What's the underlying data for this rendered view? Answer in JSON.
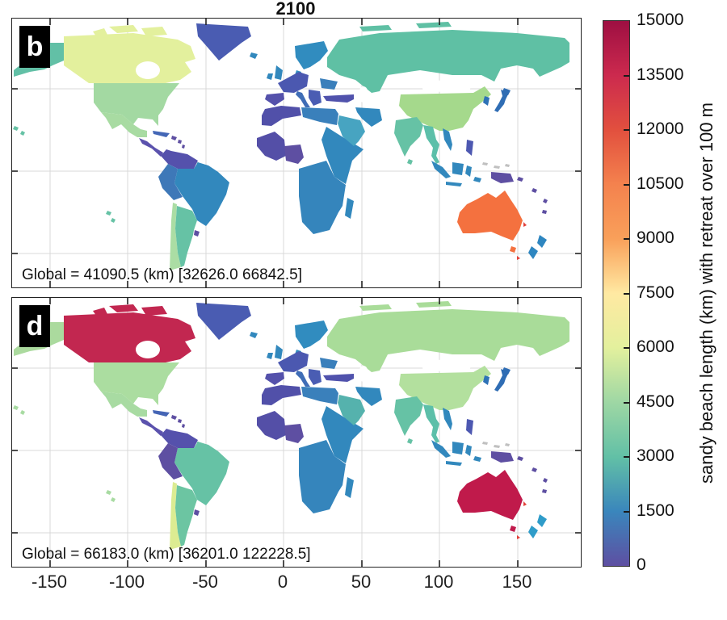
{
  "title": "2100",
  "panels": [
    {
      "id": "b",
      "label": "b",
      "global_text": "Global = 41090.5 (km) [32626.0 66842.5]",
      "region_colors": {
        "alaska": "#62c0a6",
        "canada": "#e3f09d",
        "greenland": "#4a5cb2",
        "usa": "#a3d9a2",
        "mexico": "#a8dba2",
        "central_america": "#5b52ad",
        "cuba": "#4467b6",
        "caribbean": "#5e4fa2",
        "colombia_venezuela": "#5551ac",
        "guyana": "#62c0a6",
        "peru": "#3e78b8",
        "brazil": "#3288bd",
        "chile": "#abdda4",
        "argentina": "#66c2a5",
        "uruguay": "#5e4fa2",
        "iceland": "#3288bd",
        "uk_ireland": "#3288bd",
        "scandinavia": "#318cbf",
        "west_europe": "#4b58b0",
        "iberia": "#5451ab",
        "italy": "#3f6db6",
        "balkans": "#4a5db3",
        "east_europe": "#3a7fbb",
        "turkey": "#5052ac",
        "north_africa_west": "#5150a9",
        "libya_egypt": "#3a80bb",
        "west_africa": "#544fa7",
        "nigeria_gulf": "#5e4fa2",
        "east_africa": "#3288bd",
        "southern_africa": "#3585bc",
        "madagascar": "#3288bd",
        "saudi_arabia": "#47a4c1",
        "iran": "#3288bd",
        "russia": "#5fc0a4",
        "russia_slivers": "#5fc0a4",
        "china": "#a5d98c",
        "korea": "#2e72b6",
        "japan": "#2f6db4",
        "india": "#66c2a5",
        "se_asia": "#5cbfa9",
        "vietnam": "#3288bd",
        "indonesia": "#3288bd",
        "philippines": "#4d58b1",
        "new_guinea": "#5e4fa2",
        "pacific_islands": "#5e4fa2",
        "australia": "#f4713f",
        "new_zealand": "#2e86c0",
        "red_specks": "#e2403a",
        "no_data": "#c0c0c0",
        "scattered_green": "#66c2a5",
        "hudson_bay": "#ffffff",
        "mongolia_interior": "#ffffff",
        "caspian_sea": "#ffffff"
      }
    },
    {
      "id": "d",
      "label": "d",
      "global_text": "Global = 66183.0 (km) [36201.0 122228.5]",
      "region_colors": {
        "alaska": "#abda9e",
        "canada": "#c22750",
        "greenland": "#4a5cb2",
        "usa": "#abdda0",
        "mexico": "#a8dba2",
        "central_america": "#5b52ad",
        "cuba": "#4565b5",
        "caribbean": "#5e4fa2",
        "colombia_venezuela": "#5551ac",
        "guyana": "#62c0a6",
        "peru": "#5e4fa2",
        "brazil": "#66c2a5",
        "chile": "#dcec92",
        "argentina": "#6cc5a2",
        "uruguay": "#5e4fa2",
        "iceland": "#3288bd",
        "uk_ireland": "#3288bd",
        "scandinavia": "#318cbf",
        "west_europe": "#4b58b0",
        "iberia": "#5451ab",
        "italy": "#3f6db6",
        "balkans": "#4a5db3",
        "east_europe": "#3a7fbb",
        "turkey": "#5052ac",
        "north_africa_west": "#5150a9",
        "libya_egypt": "#3a80bb",
        "west_africa": "#544fa7",
        "nigeria_gulf": "#5e4fa2",
        "east_africa": "#3288bd",
        "southern_africa": "#3585bc",
        "madagascar": "#3288bd",
        "saudi_arabia": "#55b2ad",
        "iran": "#3288bd",
        "russia": "#a9dc99",
        "russia_slivers": "#a9dc99",
        "china": "#b3e09e",
        "korea": "#2e72b6",
        "japan": "#2f6db4",
        "india": "#66c2a5",
        "se_asia": "#5cbfa9",
        "vietnam": "#3288bd",
        "indonesia": "#3288bd",
        "philippines": "#4d58b1",
        "new_guinea": "#5e4fa2",
        "pacific_islands": "#5e4fa2",
        "australia": "#c01a4b",
        "new_zealand": "#2f9cc9",
        "red_specks": "#e2403a",
        "no_data": "#c0c0c0",
        "scattered_green": "#a8dba2",
        "hudson_bay": "#ffffff",
        "mongolia_interior": "#ffffff",
        "caspian_sea": "#ffffff"
      }
    }
  ],
  "x_axis_ticks": [
    "-150",
    "-100",
    "-50",
    "0",
    "50",
    "100",
    "150"
  ],
  "colorbar": {
    "ticks": [
      "0",
      "1500",
      "3000",
      "4500",
      "6000",
      "7500",
      "9000",
      "10500",
      "12000",
      "13500",
      "15000"
    ],
    "label": "sandy beach length (km) with retreat over 100 m",
    "stops": [
      "#5e4fa2",
      "#3a86bc",
      "#62c0a6",
      "#9ed7a4",
      "#e3f09d",
      "#ffe9a2",
      "#f9a05a",
      "#f4824e",
      "#e2503e",
      "#cc2a4e",
      "#9e0f42"
    ]
  },
  "chart_data": {
    "type": "heatmap",
    "variant": "world_choropleth_two_panels",
    "title": "2100",
    "value_label": "sandy beach length (km) with retreat over 100 m",
    "value_range": [
      0,
      15000
    ],
    "colorbar_ticks": [
      0,
      1500,
      3000,
      4500,
      6000,
      7500,
      9000,
      10500,
      12000,
      13500,
      15000
    ],
    "colormap_low_to_high": [
      "#5e4fa2",
      "#3a86bc",
      "#62c0a6",
      "#9ed7a4",
      "#e3f09d",
      "#ffe9a2",
      "#f9a05a",
      "#f4824e",
      "#e2503e",
      "#cc2a4e",
      "#9e0f42"
    ],
    "lon_axis_ticks": [
      -150,
      -100,
      -50,
      0,
      50,
      100,
      150
    ],
    "legend_position": "right-colorbar",
    "grid": true,
    "panels": [
      {
        "panel": "b",
        "global_km": 41090.5,
        "range_km": [
          32626.0,
          66842.5
        ],
        "country_values_km_estimated": {
          "alaska": 3000,
          "canada": 6000,
          "usa": 4700,
          "mexico": 4600,
          "greenland": 700,
          "central_america": 400,
          "caribbean": 200,
          "cuba": 1100,
          "colombia_venezuela": 400,
          "guyana": 3000,
          "peru": 1300,
          "brazil": 1500,
          "chile": 4500,
          "argentina": 3000,
          "uruguay": 200,
          "iceland": 1500,
          "uk_ireland": 1500,
          "scandinavia": 1600,
          "west_europe": 600,
          "iberia": 400,
          "italy": 1200,
          "balkans": 700,
          "east_europe": 1400,
          "turkey": 400,
          "north_africa_west": 300,
          "libya_egypt": 1400,
          "west_africa": 300,
          "nigeria_gulf": 150,
          "east_africa": 1500,
          "southern_africa": 1500,
          "madagascar": 1500,
          "saudi_arabia": 2300,
          "iran": 1500,
          "russia": 3100,
          "china": 5200,
          "korea": 1200,
          "japan": 1100,
          "india": 3000,
          "se_asia": 2800,
          "vietnam": 1500,
          "indonesia": 1500,
          "philippines": 600,
          "new_guinea": 200,
          "pacific_islands": 200,
          "australia": 11500,
          "new_zealand": 1600
        }
      },
      {
        "panel": "d",
        "global_km": 66183.0,
        "range_km": [
          36201.0,
          122228.5
        ],
        "country_values_km_estimated": {
          "alaska": 4700,
          "canada": 14200,
          "usa": 4800,
          "mexico": 4600,
          "greenland": 700,
          "central_america": 400,
          "caribbean": 200,
          "cuba": 1100,
          "colombia_venezuela": 400,
          "guyana": 3000,
          "peru": 250,
          "brazil": 3000,
          "chile": 6400,
          "argentina": 3100,
          "uruguay": 200,
          "iceland": 1500,
          "uk_ireland": 1500,
          "scandinavia": 1600,
          "west_europe": 600,
          "iberia": 400,
          "italy": 1200,
          "balkans": 700,
          "east_europe": 1400,
          "turkey": 400,
          "north_africa_west": 300,
          "libya_egypt": 1400,
          "west_africa": 300,
          "nigeria_gulf": 150,
          "east_africa": 1500,
          "southern_africa": 1500,
          "madagascar": 1500,
          "saudi_arabia": 2700,
          "iran": 1500,
          "russia": 5000,
          "china": 5400,
          "korea": 1200,
          "japan": 1100,
          "india": 3000,
          "se_asia": 2800,
          "vietnam": 1500,
          "indonesia": 1500,
          "philippines": 600,
          "new_guinea": 200,
          "pacific_islands": 200,
          "australia": 14300,
          "new_zealand": 1900
        }
      }
    ]
  }
}
